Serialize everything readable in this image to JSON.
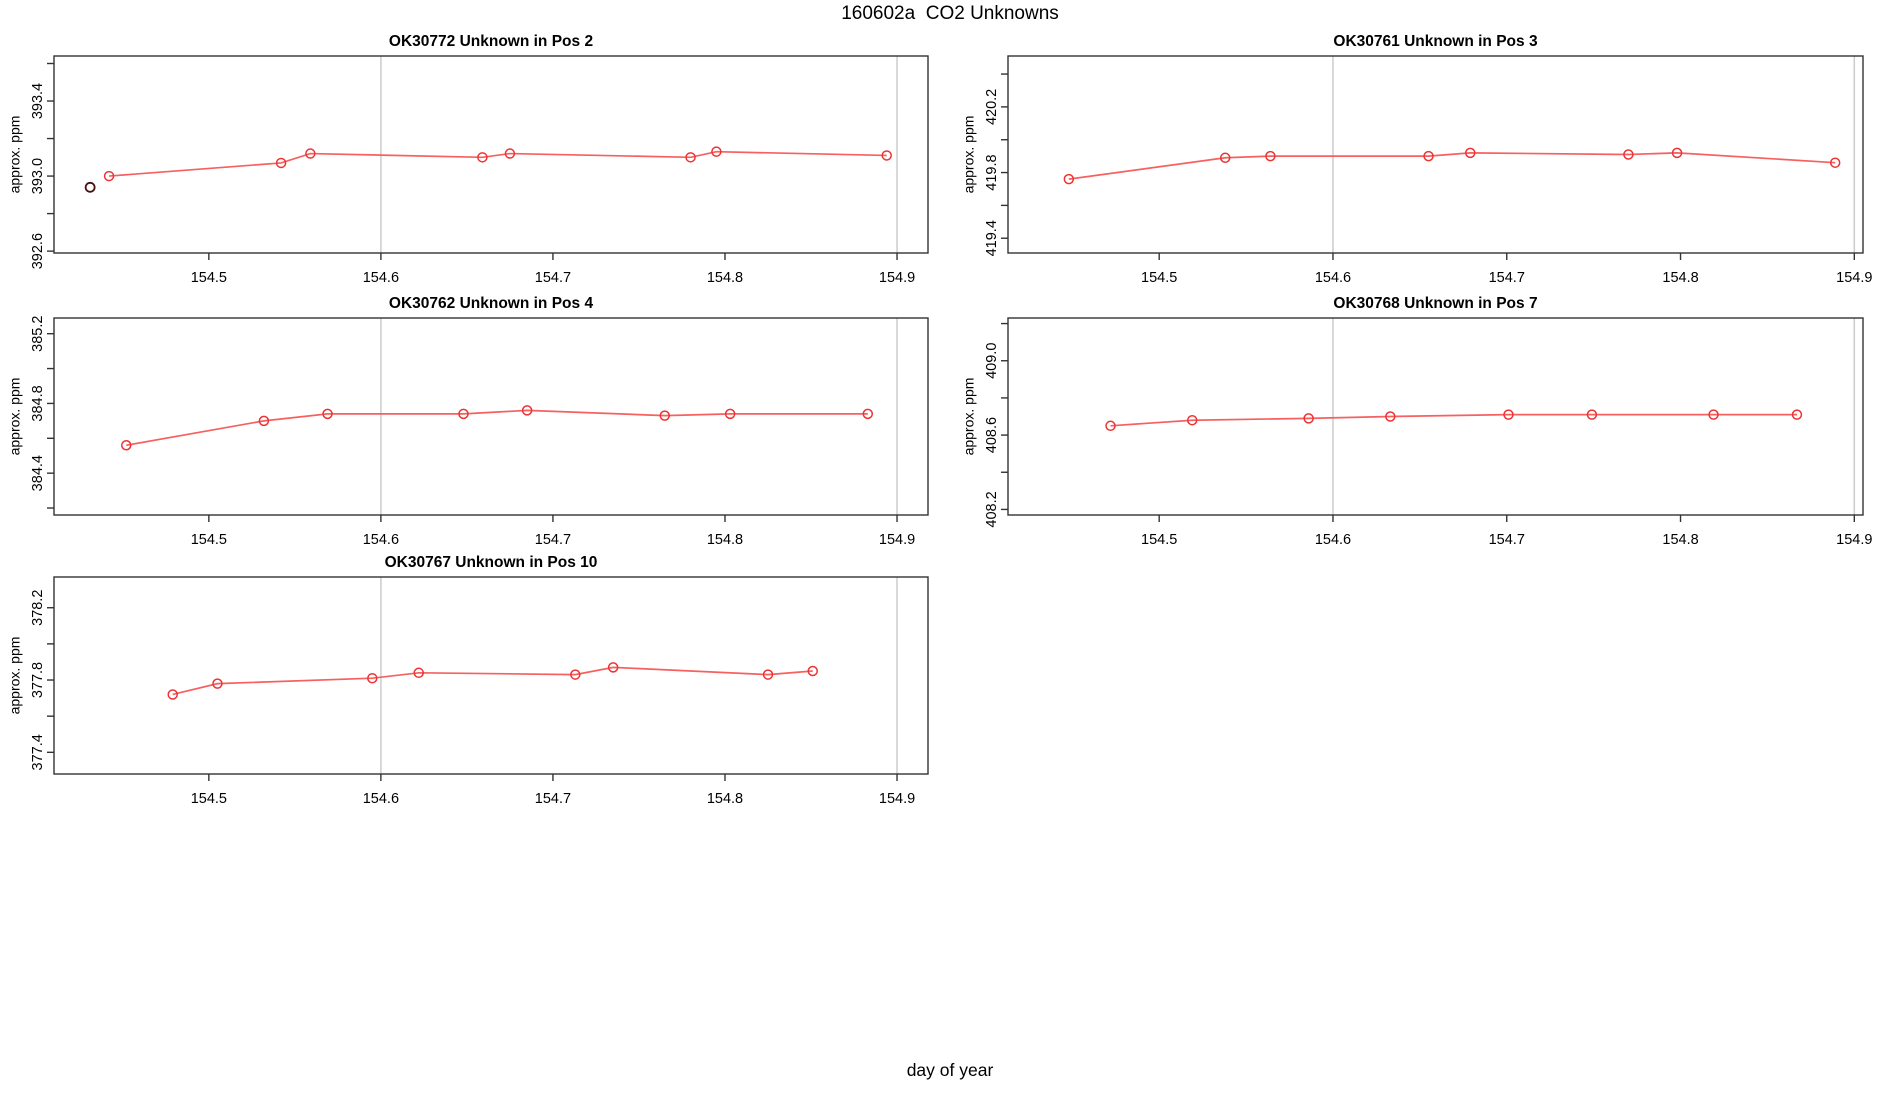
{
  "main": {
    "title": "160602a  CO2 Unknowns",
    "outer_xlabel": "day of year"
  },
  "colors": {
    "series_line": "#f66060",
    "series_point": "#ee3232",
    "dark_point": "#4a1010",
    "gridline": "#cccccc",
    "axis": "#333333",
    "text": "#000000"
  },
  "chart_data": [
    {
      "type": "line",
      "title": "OK30772   Unknown in Pos 2",
      "ylabel": "approx. ppm",
      "position": {
        "row": 0,
        "col": 0
      },
      "xlim": [
        154.41,
        154.918
      ],
      "ylim": [
        392.59,
        393.64
      ],
      "xticks": [
        154.5,
        154.6,
        154.7,
        154.8,
        154.9
      ],
      "ytick_step": 0.2,
      "ytick_labeled": [
        392.6,
        393.0,
        393.4
      ],
      "vlines": [
        154.6,
        154.9
      ],
      "grid": "vlines-only",
      "legend": "none",
      "series": [
        {
          "name": "co2-approx-ppm",
          "x": [
            154.442,
            154.542,
            154.559,
            154.659,
            154.675,
            154.78,
            154.795,
            154.894
          ],
          "y": [
            393.0,
            393.07,
            393.12,
            393.1,
            393.12,
            393.1,
            393.13,
            393.11
          ]
        }
      ],
      "extra_points": [
        {
          "x": 154.431,
          "y": 392.94,
          "color_key": "dark_point"
        }
      ]
    },
    {
      "type": "line",
      "title": "OK30761   Unknown in Pos 3",
      "ylabel": "approx. ppm",
      "position": {
        "row": 0,
        "col": 1
      },
      "xlim": [
        154.413,
        154.905
      ],
      "ylim": [
        419.31,
        420.51
      ],
      "xticks": [
        154.5,
        154.6,
        154.7,
        154.8,
        154.9
      ],
      "ytick_step": 0.2,
      "ytick_labeled": [
        419.4,
        419.8,
        420.2
      ],
      "vlines": [
        154.6,
        154.9
      ],
      "grid": "vlines-only",
      "legend": "none",
      "series": [
        {
          "name": "co2-approx-ppm",
          "x": [
            154.448,
            154.538,
            154.564,
            154.655,
            154.679,
            154.77,
            154.798,
            154.889
          ],
          "y": [
            419.76,
            419.89,
            419.9,
            419.9,
            419.92,
            419.91,
            419.92,
            419.86
          ]
        }
      ],
      "extra_points": []
    },
    {
      "type": "line",
      "title": "OK30762   Unknown in Pos 4",
      "ylabel": "approx. ppm",
      "position": {
        "row": 1,
        "col": 0
      },
      "xlim": [
        154.41,
        154.918
      ],
      "ylim": [
        384.16,
        385.29
      ],
      "xticks": [
        154.5,
        154.6,
        154.7,
        154.8,
        154.9
      ],
      "ytick_step": 0.2,
      "ytick_labeled": [
        384.4,
        384.8,
        385.2
      ],
      "vlines": [
        154.6,
        154.9
      ],
      "grid": "vlines-only",
      "legend": "none",
      "series": [
        {
          "name": "co2-approx-ppm",
          "x": [
            154.452,
            154.532,
            154.569,
            154.648,
            154.685,
            154.765,
            154.803,
            154.883
          ],
          "y": [
            384.56,
            384.7,
            384.74,
            384.74,
            384.76,
            384.73,
            384.74,
            384.74
          ]
        }
      ],
      "extra_points": []
    },
    {
      "type": "line",
      "title": "OK30768   Unknown in Pos 7",
      "ylabel": "approx. ppm",
      "position": {
        "row": 1,
        "col": 1
      },
      "xlim": [
        154.413,
        154.905
      ],
      "ylim": [
        408.17,
        409.23
      ],
      "xticks": [
        154.5,
        154.6,
        154.7,
        154.8,
        154.9
      ],
      "ytick_step": 0.2,
      "ytick_labeled": [
        408.2,
        408.6,
        409.0
      ],
      "vlines": [
        154.6,
        154.9
      ],
      "grid": "vlines-only",
      "legend": "none",
      "series": [
        {
          "name": "co2-approx-ppm",
          "x": [
            154.472,
            154.519,
            154.586,
            154.633,
            154.701,
            154.749,
            154.819,
            154.867
          ],
          "y": [
            408.65,
            408.68,
            408.69,
            408.7,
            408.71,
            408.71,
            408.71,
            408.71
          ]
        }
      ],
      "extra_points": []
    },
    {
      "type": "line",
      "title": "OK30767   Unknown in Pos 10",
      "ylabel": "approx. ppm",
      "position": {
        "row": 2,
        "col": 0
      },
      "xlim": [
        154.41,
        154.918
      ],
      "ylim": [
        377.28,
        378.37
      ],
      "xticks": [
        154.5,
        154.6,
        154.7,
        154.8,
        154.9
      ],
      "ytick_step": 0.2,
      "ytick_labeled": [
        377.4,
        377.8,
        378.2
      ],
      "vlines": [
        154.6,
        154.9
      ],
      "grid": "vlines-only",
      "legend": "none",
      "series": [
        {
          "name": "co2-approx-ppm",
          "x": [
            154.479,
            154.505,
            154.595,
            154.622,
            154.713,
            154.735,
            154.825,
            154.851
          ],
          "y": [
            377.72,
            377.78,
            377.81,
            377.84,
            377.83,
            377.87,
            377.83,
            377.85
          ]
        }
      ],
      "extra_points": []
    }
  ]
}
